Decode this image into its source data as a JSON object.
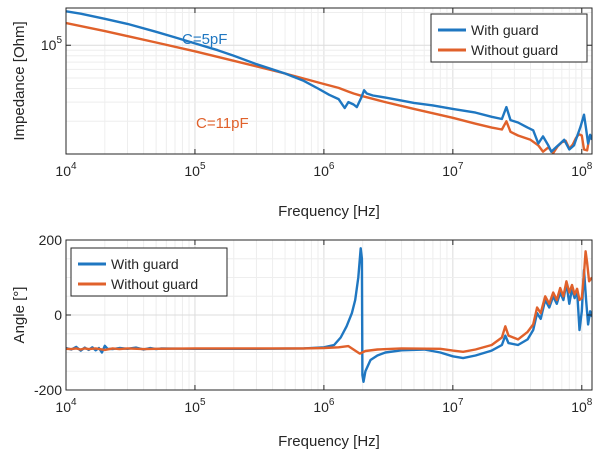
{
  "colors": {
    "with_guard": "#1f77c1",
    "without_guard": "#e0612b",
    "grid": "#e6e6e6",
    "axis": "#262626"
  },
  "chart_data": [
    {
      "type": "line",
      "ylabel": "Impedance [Ohm]",
      "xlabel": "Frequency [Hz]",
      "xscale": "log",
      "yscale": "log",
      "xlim": [
        10000,
        120000000
      ],
      "ylim": [
        10000,
        220000
      ],
      "grid": true,
      "legend_placement": "top-right",
      "x_ticks": [
        {
          "value": 10000,
          "base": "10",
          "exp": "4"
        },
        {
          "value": 100000,
          "base": "10",
          "exp": "5"
        },
        {
          "value": 1000000,
          "base": "10",
          "exp": "6"
        },
        {
          "value": 10000000,
          "base": "10",
          "exp": "7"
        },
        {
          "value": 100000000,
          "base": "10",
          "exp": "8"
        }
      ],
      "y_ticks": [
        {
          "value": 100000,
          "base": "10",
          "exp": "5"
        }
      ],
      "annotations": [
        {
          "text": "C=5pF",
          "series": "with_guard",
          "x": 110000,
          "y": 160000
        },
        {
          "text": "C=11pF",
          "series": "without_guard",
          "x": 1100000,
          "y": 33000
        }
      ],
      "series": [
        {
          "key": "with_guard",
          "name": "With guard",
          "color": "#1f77c1",
          "points": [
            [
              10000,
              205000
            ],
            [
              13000,
              195000
            ],
            [
              20000,
              175000
            ],
            [
              30000,
              157000
            ],
            [
              50000,
              133000
            ],
            [
              70000,
              118000
            ],
            [
              100000,
              104000
            ],
            [
              150000,
              90000
            ],
            [
              200000,
              80000
            ],
            [
              300000,
              67000
            ],
            [
              500000,
              55000
            ],
            [
              700000,
              47000
            ],
            [
              900000,
              40000
            ],
            [
              1100000,
              35000
            ],
            [
              1300000,
              32000
            ],
            [
              1450000,
              26500
            ],
            [
              1550000,
              30000
            ],
            [
              1700000,
              28500
            ],
            [
              1800000,
              27000
            ],
            [
              1950000,
              33000
            ],
            [
              2050000,
              38500
            ],
            [
              2150000,
              36000
            ],
            [
              2400000,
              34500
            ],
            [
              3000000,
              33000
            ],
            [
              4000000,
              31000
            ],
            [
              5000000,
              29500
            ],
            [
              7000000,
              28000
            ],
            [
              10000000,
              26000
            ],
            [
              15000000,
              24000
            ],
            [
              20000000,
              22000
            ],
            [
              24000000,
              21000
            ],
            [
              26000000,
              27000
            ],
            [
              28000000,
              20500
            ],
            [
              32000000,
              19500
            ],
            [
              38000000,
              17500
            ],
            [
              42000000,
              16500
            ],
            [
              46000000,
              12500
            ],
            [
              50000000,
              14500
            ],
            [
              55000000,
              12000
            ],
            [
              58000000,
              10500
            ],
            [
              63000000,
              11500
            ],
            [
              68000000,
              12500
            ],
            [
              73000000,
              13500
            ],
            [
              80000000,
              11000
            ],
            [
              87000000,
              12000
            ],
            [
              92000000,
              14500
            ],
            [
              98000000,
              18000
            ],
            [
              104000000,
              23000
            ],
            [
              108000000,
              17000
            ],
            [
              112000000,
              12500
            ],
            [
              116000000,
              15000
            ],
            [
              120000000,
              13500
            ]
          ]
        },
        {
          "key": "without_guard",
          "name": "Without guard",
          "color": "#e0612b",
          "points": [
            [
              10000,
              160000
            ],
            [
              20000,
              135000
            ],
            [
              50000,
              106000
            ],
            [
              100000,
              88000
            ],
            [
              200000,
              72000
            ],
            [
              500000,
              55000
            ],
            [
              1000000,
              44000
            ],
            [
              1300000,
              40500
            ],
            [
              1550000,
              37500
            ],
            [
              1700000,
              36000
            ],
            [
              2000000,
              34000
            ],
            [
              3000000,
              30000
            ],
            [
              5000000,
              26000
            ],
            [
              10000000,
              21500
            ],
            [
              15000000,
              19000
            ],
            [
              20000000,
              17500
            ],
            [
              24000000,
              16800
            ],
            [
              26000000,
              20000
            ],
            [
              28000000,
              16000
            ],
            [
              32000000,
              14800
            ],
            [
              40000000,
              13500
            ],
            [
              46000000,
              12000
            ],
            [
              50000000,
              10500
            ],
            [
              55000000,
              11500
            ],
            [
              60000000,
              10200
            ],
            [
              65000000,
              11800
            ],
            [
              70000000,
              12800
            ],
            [
              75000000,
              13200
            ],
            [
              80000000,
              11200
            ],
            [
              85000000,
              12200
            ],
            [
              90000000,
              14000
            ],
            [
              95000000,
              15200
            ],
            [
              100000000,
              14800
            ],
            [
              104000000,
              11000
            ],
            [
              110000000,
              10800
            ],
            [
              115000000,
              14500
            ],
            [
              120000000,
              13800
            ]
          ]
        }
      ]
    },
    {
      "type": "line",
      "ylabel": "Angle [°]",
      "xlabel": "Frequency [Hz]",
      "xscale": "log",
      "yscale": "linear",
      "xlim": [
        10000,
        120000000
      ],
      "ylim": [
        -200,
        200
      ],
      "grid": true,
      "legend_placement": "top-left",
      "x_ticks": [
        {
          "value": 10000,
          "base": "10",
          "exp": "4"
        },
        {
          "value": 100000,
          "base": "10",
          "exp": "5"
        },
        {
          "value": 1000000,
          "base": "10",
          "exp": "6"
        },
        {
          "value": 10000000,
          "base": "10",
          "exp": "7"
        },
        {
          "value": 100000000,
          "base": "10",
          "exp": "8"
        }
      ],
      "y_ticks": [
        {
          "value": 200,
          "label": "200"
        },
        {
          "value": 0,
          "label": "0"
        },
        {
          "value": -200,
          "label": "-200"
        }
      ],
      "series": [
        {
          "key": "with_guard",
          "name": "With guard",
          "color": "#1f77c1",
          "points": [
            [
              10000,
              -88
            ],
            [
              11000,
              -92
            ],
            [
              12000,
              -85
            ],
            [
              13000,
              -95
            ],
            [
              14000,
              -87
            ],
            [
              15000,
              -93
            ],
            [
              16000,
              -86
            ],
            [
              17000,
              -94
            ],
            [
              18000,
              -88
            ],
            [
              19000,
              -100
            ],
            [
              20000,
              -82
            ],
            [
              21000,
              -90
            ],
            [
              23000,
              -91
            ],
            [
              26000,
              -88
            ],
            [
              30000,
              -90
            ],
            [
              35000,
              -87
            ],
            [
              40000,
              -92
            ],
            [
              45000,
              -88
            ],
            [
              50000,
              -91
            ],
            [
              55000,
              -89
            ],
            [
              100000,
              -90
            ],
            [
              300000,
              -90
            ],
            [
              700000,
              -89
            ],
            [
              1000000,
              -86
            ],
            [
              1200000,
              -80
            ],
            [
              1350000,
              -60
            ],
            [
              1500000,
              -30
            ],
            [
              1650000,
              5
            ],
            [
              1750000,
              40
            ],
            [
              1850000,
              100
            ],
            [
              1930000,
              178
            ],
            [
              1970000,
              150
            ],
            [
              1990000,
              -160
            ],
            [
              2030000,
              -178
            ],
            [
              2100000,
              -150
            ],
            [
              2300000,
              -120
            ],
            [
              2600000,
              -108
            ],
            [
              3000000,
              -100
            ],
            [
              4000000,
              -94
            ],
            [
              6000000,
              -92
            ],
            [
              8000000,
              -100
            ],
            [
              10000000,
              -110
            ],
            [
              12000000,
              -115
            ],
            [
              15000000,
              -108
            ],
            [
              20000000,
              -95
            ],
            [
              24000000,
              -80
            ],
            [
              25500000,
              -55
            ],
            [
              27000000,
              -75
            ],
            [
              32000000,
              -80
            ],
            [
              38000000,
              -65
            ],
            [
              42000000,
              -40
            ],
            [
              45000000,
              5
            ],
            [
              48000000,
              -10
            ],
            [
              52000000,
              40
            ],
            [
              56000000,
              20
            ],
            [
              60000000,
              50
            ],
            [
              64000000,
              30
            ],
            [
              68000000,
              60
            ],
            [
              72000000,
              40
            ],
            [
              76000000,
              85
            ],
            [
              80000000,
              30
            ],
            [
              84000000,
              70
            ],
            [
              88000000,
              45
            ],
            [
              92000000,
              65
            ],
            [
              96000000,
              -40
            ],
            [
              100000000,
              10
            ],
            [
              104000000,
              120
            ],
            [
              108000000,
              40
            ],
            [
              112000000,
              -25
            ],
            [
              116000000,
              10
            ],
            [
              120000000,
              -5
            ]
          ]
        },
        {
          "key": "without_guard",
          "name": "Without guard",
          "color": "#e0612b",
          "points": [
            [
              10000,
              -90
            ],
            [
              11000,
              -91
            ],
            [
              12000,
              -89
            ],
            [
              13000,
              -92
            ],
            [
              14000,
              -89
            ],
            [
              15000,
              -91
            ],
            [
              17000,
              -89
            ],
            [
              20000,
              -93
            ],
            [
              23000,
              -89
            ],
            [
              26000,
              -91
            ],
            [
              30000,
              -89
            ],
            [
              40000,
              -91
            ],
            [
              50000,
              -90
            ],
            [
              100000,
              -89
            ],
            [
              300000,
              -89
            ],
            [
              700000,
              -89
            ],
            [
              1000000,
              -88
            ],
            [
              1300000,
              -86
            ],
            [
              1550000,
              -83
            ],
            [
              1750000,
              -95
            ],
            [
              1900000,
              -103
            ],
            [
              2100000,
              -96
            ],
            [
              2600000,
              -92
            ],
            [
              4000000,
              -89
            ],
            [
              8000000,
              -90
            ],
            [
              10000000,
              -95
            ],
            [
              12000000,
              -98
            ],
            [
              15000000,
              -92
            ],
            [
              20000000,
              -80
            ],
            [
              24000000,
              -60
            ],
            [
              25500000,
              -30
            ],
            [
              27000000,
              -55
            ],
            [
              32000000,
              -65
            ],
            [
              38000000,
              -45
            ],
            [
              42000000,
              -25
            ],
            [
              45000000,
              20
            ],
            [
              48000000,
              5
            ],
            [
              52000000,
              50
            ],
            [
              56000000,
              30
            ],
            [
              60000000,
              60
            ],
            [
              64000000,
              40
            ],
            [
              68000000,
              72
            ],
            [
              72000000,
              50
            ],
            [
              76000000,
              90
            ],
            [
              80000000,
              60
            ],
            [
              84000000,
              80
            ],
            [
              88000000,
              55
            ],
            [
              92000000,
              70
            ],
            [
              96000000,
              40
            ],
            [
              100000000,
              45
            ],
            [
              104000000,
              110
            ],
            [
              107000000,
              170
            ],
            [
              110000000,
              140
            ],
            [
              114000000,
              90
            ],
            [
              120000000,
              100
            ]
          ]
        }
      ]
    }
  ]
}
